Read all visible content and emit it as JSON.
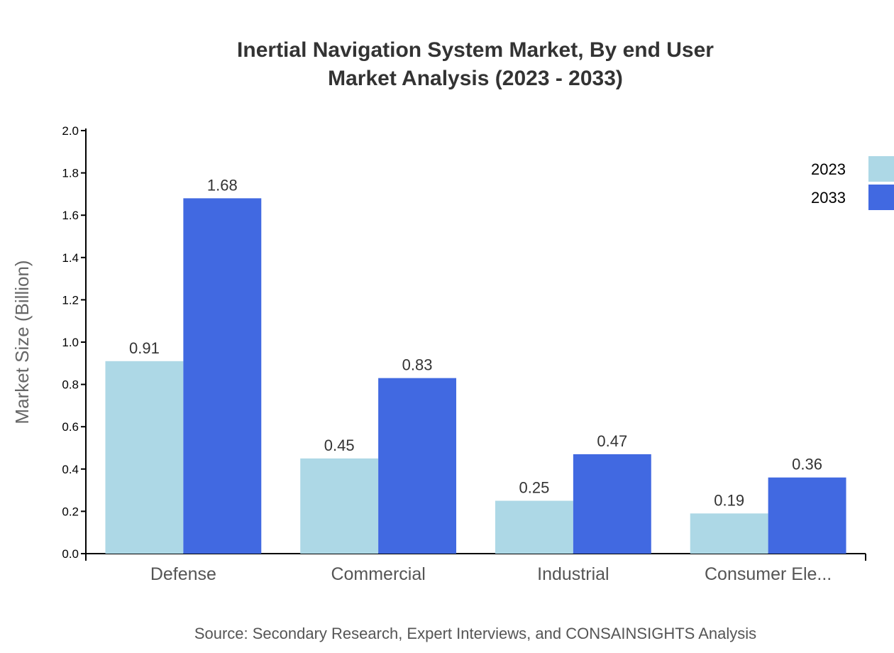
{
  "chart_data": {
    "type": "bar",
    "title": [
      "Inertial Navigation System Market, By end User",
      "Market Analysis (2023 - 2033)"
    ],
    "xlabel": "",
    "ylabel": "Market Size (Billion)",
    "ylim": [
      0,
      2.0
    ],
    "yticks": [
      "0.0",
      "0.2",
      "0.4",
      "0.6",
      "0.8",
      "1.0",
      "1.2",
      "1.4",
      "1.6",
      "1.8",
      "2.0"
    ],
    "categories": [
      "Defense",
      "Commercial",
      "Industrial",
      "Consumer Ele..."
    ],
    "series": [
      {
        "name": "2023",
        "color": "#ADD8E6",
        "values": [
          0.91,
          0.45,
          0.25,
          0.19
        ]
      },
      {
        "name": "2033",
        "color": "#4169E1",
        "values": [
          1.68,
          0.83,
          0.47,
          0.36
        ]
      }
    ],
    "grid": false,
    "legend": "top-right",
    "source": "Source: Secondary Research, Expert Interviews, and CONSAINSIGHTS Analysis"
  }
}
